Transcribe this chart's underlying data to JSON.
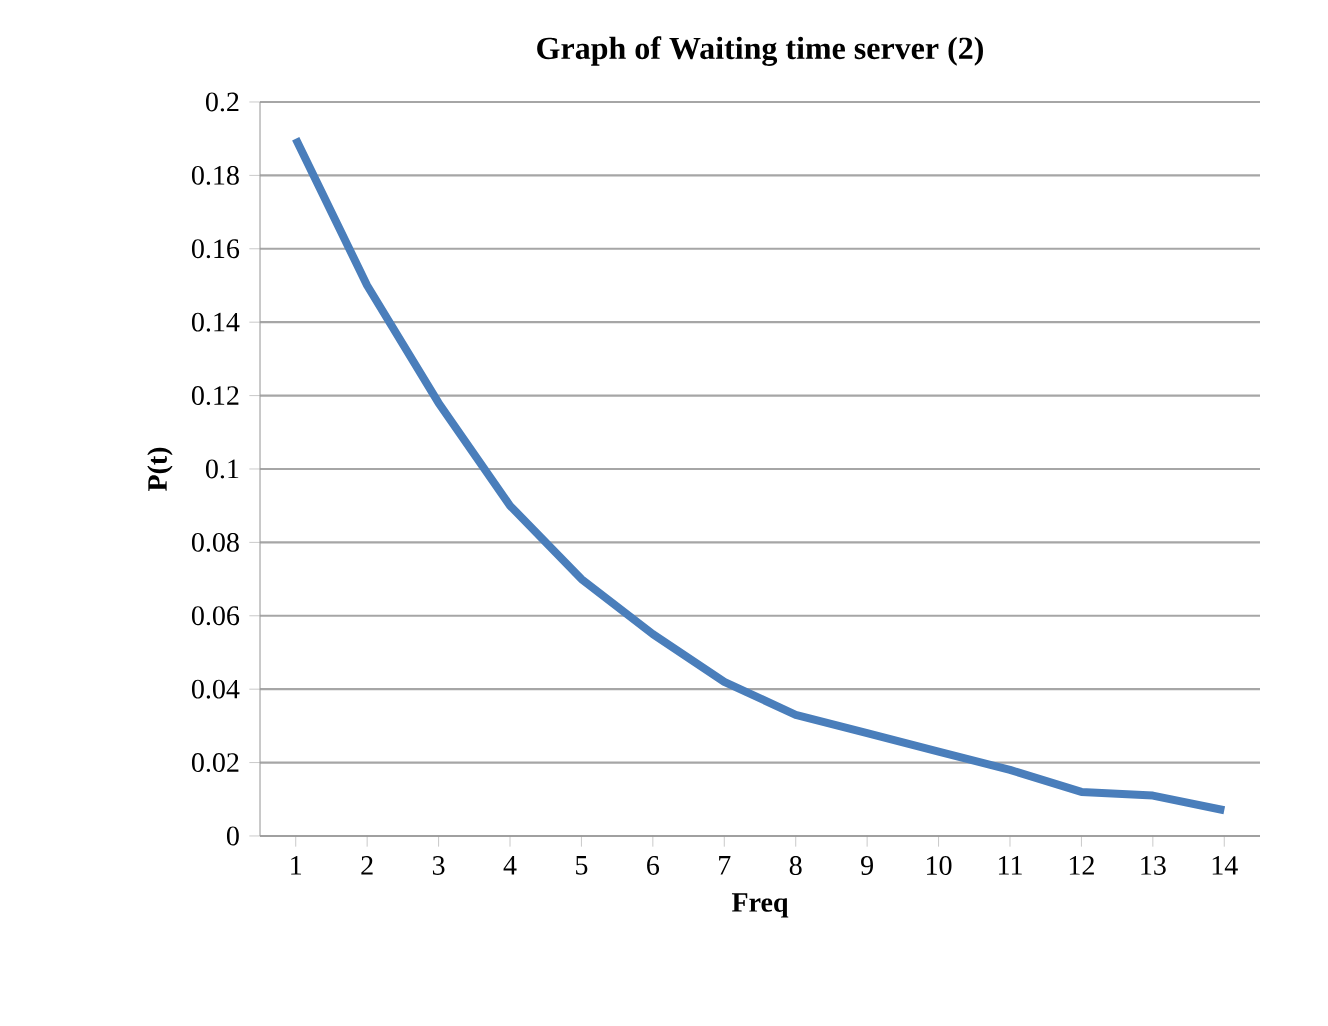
{
  "chart_data": {
    "type": "line",
    "title": "Graph of Waiting time server  (2)",
    "xlabel": "Freq",
    "ylabel": "P(t)",
    "categories": [
      "1",
      "2",
      "3",
      "4",
      "5",
      "6",
      "7",
      "8",
      "9",
      "10",
      "11",
      "12",
      "13",
      "14"
    ],
    "series": [
      {
        "color": "#4a7ebb",
        "values": [
          0.19,
          0.15,
          0.118,
          0.09,
          0.07,
          0.055,
          0.042,
          0.033,
          0.028,
          0.023,
          0.018,
          0.012,
          0.011,
          0.007
        ]
      }
    ],
    "ylim": [
      0,
      0.2
    ],
    "yticks": [
      0,
      0.02,
      0.04,
      0.06,
      0.08,
      0.1,
      0.12,
      0.14,
      0.16,
      0.18,
      0.2
    ],
    "grid": "y",
    "marker": "none",
    "line_style": "solid"
  }
}
